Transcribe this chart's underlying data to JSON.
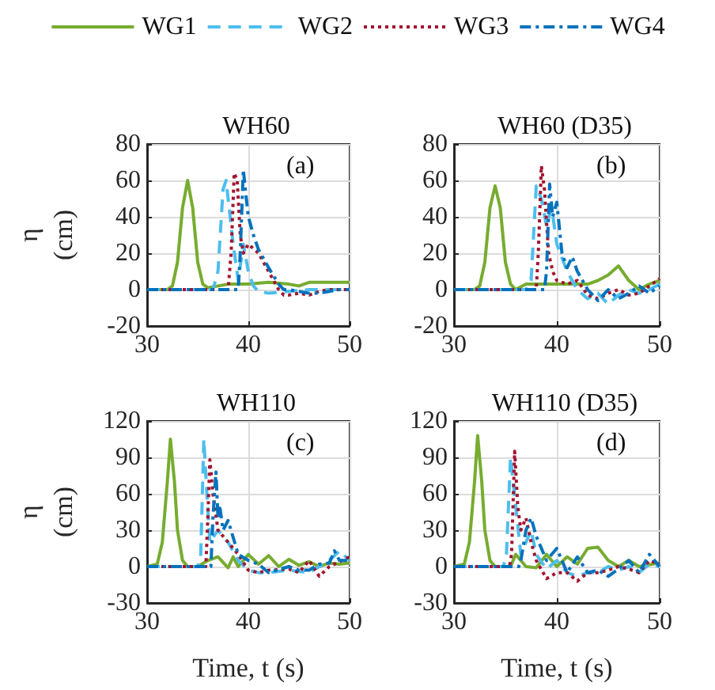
{
  "chart_data": [
    {
      "type": "line",
      "title": "WH60",
      "ylabel": "η\n(cm)",
      "annotations": [
        "(a)"
      ],
      "xlim": [
        30,
        50
      ],
      "xticks": [
        30,
        40,
        50
      ],
      "ylim": [
        -20,
        80
      ],
      "yticks": [
        -20,
        0,
        20,
        40,
        60,
        80
      ],
      "grid": true,
      "legend": "top",
      "marker": "none",
      "series": [
        {
          "name": "WG1",
          "color": "#77ac30",
          "line_style": "solid",
          "x": [
            30,
            32,
            32.5,
            33,
            33.5,
            34,
            34.5,
            35,
            35.5,
            36,
            37,
            38,
            40,
            42,
            44,
            45,
            46,
            48,
            50
          ],
          "values": [
            0,
            0,
            2,
            15,
            45,
            60,
            45,
            15,
            3,
            1,
            2,
            3,
            3,
            4,
            3,
            2,
            4,
            4,
            4
          ]
        },
        {
          "name": "WG2",
          "color": "#4dbeee",
          "line_style": "dashed",
          "x": [
            30,
            36.5,
            37,
            37.5,
            37.8,
            38,
            38.5,
            39,
            39.5,
            40,
            40.5,
            41,
            42,
            44,
            46,
            48,
            50
          ],
          "values": [
            0,
            0,
            10,
            55,
            60,
            50,
            25,
            5,
            25,
            10,
            2,
            -1,
            -2,
            -1,
            0,
            0,
            0
          ]
        },
        {
          "name": "WG3",
          "color": "#a2142f",
          "line_style": "dotted",
          "x": [
            30,
            38,
            38.3,
            38.6,
            38.9,
            39.2,
            39.5,
            40,
            41,
            42,
            43,
            43.5,
            44,
            45,
            46,
            47,
            48,
            50
          ],
          "values": [
            0,
            0,
            20,
            64,
            60,
            30,
            20,
            25,
            20,
            10,
            0,
            -3,
            -3,
            -2,
            -3,
            -1,
            0,
            0
          ]
        },
        {
          "name": "WG4",
          "color": "#0072bd",
          "line_style": "dashdot",
          "x": [
            30,
            39,
            39.2,
            39.5,
            39.8,
            40,
            40.5,
            41,
            42,
            43,
            43.5,
            44,
            45,
            46,
            47,
            48,
            49,
            50
          ],
          "values": [
            0,
            0,
            20,
            66,
            50,
            40,
            30,
            22,
            12,
            3,
            0,
            0,
            -1,
            -2,
            -2,
            -1,
            0,
            0
          ]
        }
      ]
    },
    {
      "type": "line",
      "title": "WH60 (D35)",
      "annotations": [
        "(b)"
      ],
      "xlim": [
        30,
        50
      ],
      "xticks": [
        30,
        40,
        50
      ],
      "ylim": [
        -20,
        80
      ],
      "yticks": [
        -20,
        0,
        20,
        40,
        60,
        80
      ],
      "grid": true,
      "marker": "none",
      "series": [
        {
          "color": "#77ac30",
          "line_style": "solid",
          "x": [
            30,
            32,
            32.5,
            33,
            33.5,
            34,
            34.5,
            35,
            35.5,
            36,
            37,
            40,
            43,
            44,
            45,
            46,
            47,
            48,
            49,
            50
          ],
          "values": [
            0,
            0,
            2,
            15,
            45,
            57,
            45,
            15,
            3,
            0,
            3,
            3,
            3,
            5,
            8,
            13,
            5,
            0,
            3,
            5
          ]
        },
        {
          "color": "#4dbeee",
          "line_style": "dashed",
          "x": [
            30,
            37,
            37.5,
            38,
            38.5,
            39,
            39.5,
            40,
            41,
            42,
            43,
            44,
            45,
            46,
            47,
            48,
            49,
            50
          ],
          "values": [
            0,
            0,
            5,
            57,
            50,
            35,
            45,
            25,
            10,
            0,
            -5,
            -2,
            -8,
            -3,
            0,
            -2,
            0,
            3
          ]
        },
        {
          "color": "#a2142f",
          "line_style": "dotted",
          "x": [
            30,
            38,
            38.2,
            38.5,
            38.8,
            39.2,
            39.6,
            40,
            41,
            42,
            43,
            44,
            45,
            46,
            47,
            48,
            49,
            50
          ],
          "values": [
            0,
            0,
            20,
            68,
            55,
            20,
            10,
            5,
            3,
            5,
            -3,
            -5,
            -2,
            0,
            -3,
            -2,
            2,
            6
          ]
        },
        {
          "color": "#0072bd",
          "line_style": "dashdot",
          "x": [
            30,
            38.8,
            39,
            39.3,
            39.6,
            40,
            40.5,
            41,
            41.5,
            42,
            43,
            44,
            45,
            46,
            47,
            48,
            49,
            50
          ],
          "values": [
            0,
            0,
            10,
            58,
            40,
            48,
            20,
            12,
            18,
            10,
            0,
            -6,
            0,
            -5,
            -2,
            2,
            -2,
            2
          ]
        }
      ]
    },
    {
      "type": "line",
      "title": "WH110",
      "ylabel": "η\n(cm)",
      "xlabel": "Time, t (s)",
      "annotations": [
        "(c)"
      ],
      "xlim": [
        30,
        50
      ],
      "xticks": [
        30,
        40,
        50
      ],
      "ylim": [
        -30,
        120
      ],
      "yticks": [
        -30,
        0,
        30,
        60,
        90,
        120
      ],
      "grid": true,
      "marker": "none",
      "series": [
        {
          "color": "#77ac30",
          "line_style": "solid",
          "x": [
            30,
            31,
            31.5,
            32,
            32.3,
            32.7,
            33,
            33.5,
            34,
            35,
            36,
            37,
            38,
            38.5,
            39,
            40,
            41,
            42,
            43,
            44,
            45,
            46,
            47,
            48,
            49,
            50
          ],
          "values": [
            0,
            2,
            20,
            70,
            105,
            70,
            30,
            5,
            0,
            0,
            5,
            8,
            -1,
            8,
            0,
            10,
            2,
            9,
            0,
            6,
            1,
            4,
            0,
            3,
            2,
            3
          ]
        },
        {
          "color": "#4dbeee",
          "line_style": "dashed",
          "x": [
            30,
            35,
            35.3,
            35.6,
            35.9,
            36.2,
            37,
            38,
            39,
            40,
            41,
            42,
            44,
            46,
            48,
            49,
            50
          ],
          "values": [
            0,
            0,
            10,
            105,
            60,
            20,
            30,
            20,
            5,
            -3,
            -5,
            -5,
            -3,
            -5,
            5,
            13,
            5
          ]
        },
        {
          "color": "#a2142f",
          "line_style": "dotted",
          "x": [
            30,
            35.8,
            36,
            36.2,
            36.5,
            37,
            38,
            39,
            40,
            41,
            42,
            44,
            45,
            46,
            47,
            48,
            50
          ],
          "values": [
            0,
            0,
            40,
            88,
            60,
            30,
            20,
            10,
            -3,
            -5,
            -3,
            -2,
            -5,
            5,
            -8,
            0,
            8
          ]
        },
        {
          "color": "#0072bd",
          "line_style": "dashdot",
          "x": [
            30,
            36.3,
            36.5,
            36.8,
            37,
            37.2,
            37.5,
            38,
            39,
            40,
            41,
            42,
            44,
            45,
            46,
            47,
            48,
            48.5,
            49,
            50
          ],
          "values": [
            0,
            0,
            40,
            78,
            40,
            48,
            30,
            38,
            10,
            5,
            2,
            -5,
            0,
            -3,
            -3,
            2,
            3,
            13,
            5,
            5
          ]
        }
      ]
    },
    {
      "type": "line",
      "title": "WH110 (D35)",
      "xlabel": "Time, t (s)",
      "annotations": [
        "(d)"
      ],
      "xlim": [
        30,
        50
      ],
      "xticks": [
        30,
        40,
        50
      ],
      "ylim": [
        -30,
        120
      ],
      "yticks": [
        -30,
        0,
        30,
        60,
        90,
        120
      ],
      "grid": true,
      "marker": "none",
      "series": [
        {
          "color": "#77ac30",
          "line_style": "solid",
          "x": [
            30,
            31,
            31.5,
            32,
            32.3,
            32.7,
            33,
            33.5,
            34,
            35.5,
            36,
            37,
            38,
            39,
            40,
            41,
            42,
            43,
            44,
            45,
            46,
            47,
            48,
            50
          ],
          "values": [
            0,
            2,
            20,
            70,
            108,
            70,
            30,
            5,
            0,
            0,
            10,
            0,
            -1,
            10,
            0,
            8,
            2,
            15,
            16,
            5,
            0,
            5,
            0,
            3
          ]
        },
        {
          "color": "#4dbeee",
          "line_style": "dashed",
          "x": [
            30,
            34.8,
            35.1,
            35.5,
            36,
            36.5,
            37,
            37.5,
            38,
            39,
            40,
            41,
            42,
            43,
            44,
            45,
            46,
            47,
            48,
            49,
            50
          ],
          "values": [
            0,
            0,
            10,
            90,
            50,
            10,
            20,
            30,
            10,
            -2,
            5,
            -5,
            -8,
            -5,
            -5,
            0,
            -3,
            0,
            -5,
            2,
            0
          ]
        },
        {
          "color": "#a2142f",
          "line_style": "dotted",
          "x": [
            30,
            35.4,
            35.6,
            35.9,
            36.2,
            36.5,
            37,
            37.5,
            38,
            39,
            40,
            41,
            42,
            43,
            44,
            45,
            46,
            47,
            48,
            49,
            50
          ],
          "values": [
            0,
            0,
            10,
            95,
            50,
            30,
            40,
            20,
            5,
            -10,
            -5,
            -5,
            -12,
            -5,
            -5,
            -3,
            0,
            -2,
            -5,
            5,
            2
          ]
        },
        {
          "color": "#0072bd",
          "line_style": "dashdot",
          "x": [
            30,
            36.3,
            36.5,
            37,
            37.5,
            38,
            39,
            40,
            41,
            42,
            43,
            44,
            45,
            46,
            47,
            48,
            49,
            50
          ],
          "values": [
            0,
            0,
            5,
            30,
            40,
            25,
            5,
            15,
            -5,
            8,
            -5,
            -3,
            -8,
            -2,
            5,
            -5,
            10,
            0
          ]
        }
      ]
    }
  ]
}
